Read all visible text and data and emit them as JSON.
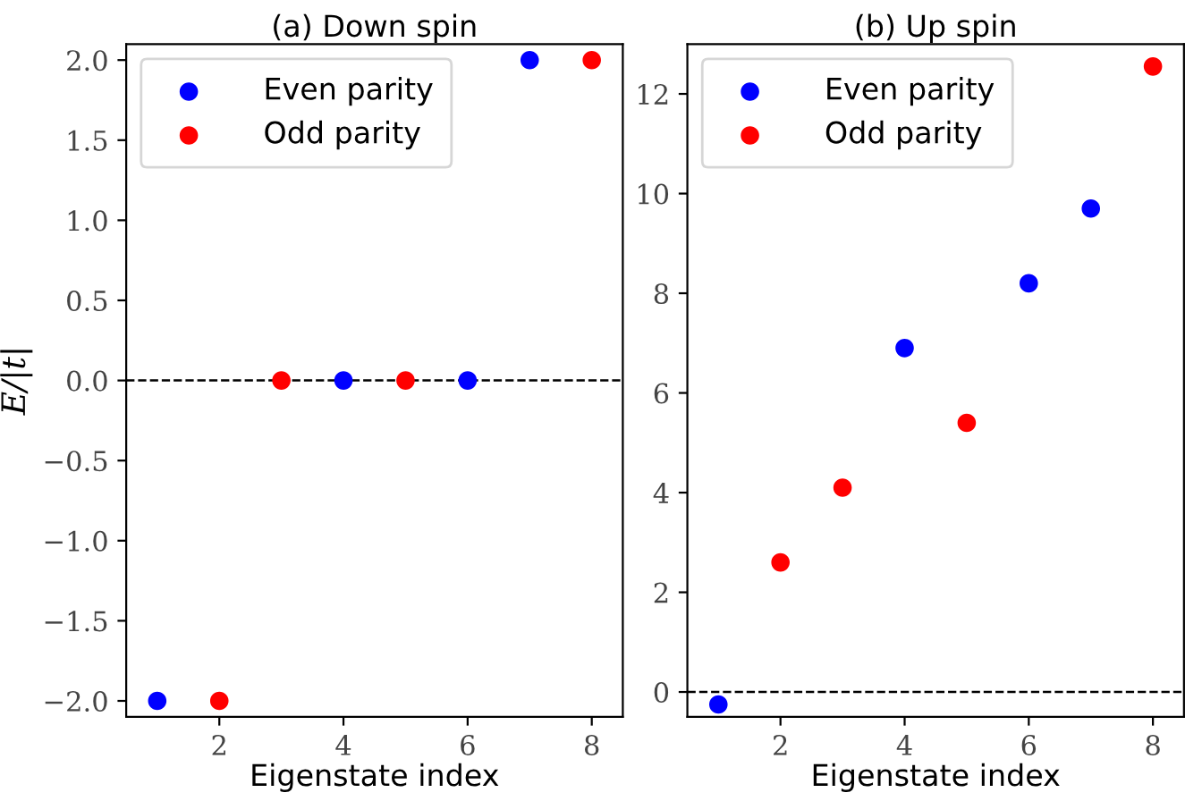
{
  "chart_data": [
    {
      "type": "scatter",
      "title": "(a) Down spin",
      "xlabel": "Eigenstate index",
      "ylabel": "E/|t|",
      "xlim": [
        0.5,
        8.5
      ],
      "xticks": [
        2,
        4,
        6,
        8
      ],
      "ylim": [
        -2.1,
        2.1
      ],
      "yticks": [
        {
          "value": -2.0,
          "label": "−2.0"
        },
        {
          "value": -1.5,
          "label": "−1.5"
        },
        {
          "value": -1.0,
          "label": "−1.0"
        },
        {
          "value": -0.5,
          "label": "−0.5"
        },
        {
          "value": 0.0,
          "label": "0.0"
        },
        {
          "value": 0.5,
          "label": "0.5"
        },
        {
          "value": 1.0,
          "label": "1.0"
        },
        {
          "value": 1.5,
          "label": "1.5"
        },
        {
          "value": 2.0,
          "label": "2.0"
        }
      ],
      "legend": "top left",
      "marker": "circle",
      "grid": false,
      "ref_lines": [
        {
          "axis": "y",
          "value": 0,
          "color": "#000000",
          "line_style": "dashed"
        }
      ],
      "series": [
        {
          "name": "Even parity",
          "color": "#0000ff",
          "x": [
            1,
            4,
            6,
            7
          ],
          "values": [
            -2,
            0,
            0,
            2
          ]
        },
        {
          "name": "Odd parity",
          "color": "#ff0000",
          "x": [
            2,
            3,
            5,
            8
          ],
          "values": [
            -2,
            0,
            0,
            2
          ]
        }
      ]
    },
    {
      "type": "scatter",
      "title": "(b) Up spin",
      "xlabel": "Eigenstate index",
      "xlim": [
        0.5,
        8.5
      ],
      "xticks": [
        2,
        4,
        6,
        8
      ],
      "ylim": [
        -0.5,
        13.0
      ],
      "yticks": [
        0,
        2,
        4,
        6,
        8,
        10,
        12
      ],
      "legend": "top left",
      "marker": "circle",
      "grid": false,
      "ref_lines": [
        {
          "axis": "y",
          "value": 0,
          "color": "#000000",
          "line_style": "dashed"
        }
      ],
      "series": [
        {
          "name": "Even parity",
          "color": "#0000ff",
          "x": [
            1,
            4,
            6,
            7
          ],
          "values": [
            -0.25,
            6.9,
            8.2,
            9.7
          ]
        },
        {
          "name": "Odd parity",
          "color": "#ff0000",
          "x": [
            2,
            3,
            5,
            8
          ],
          "values": [
            2.6,
            4.1,
            5.4,
            12.55
          ]
        }
      ]
    }
  ]
}
